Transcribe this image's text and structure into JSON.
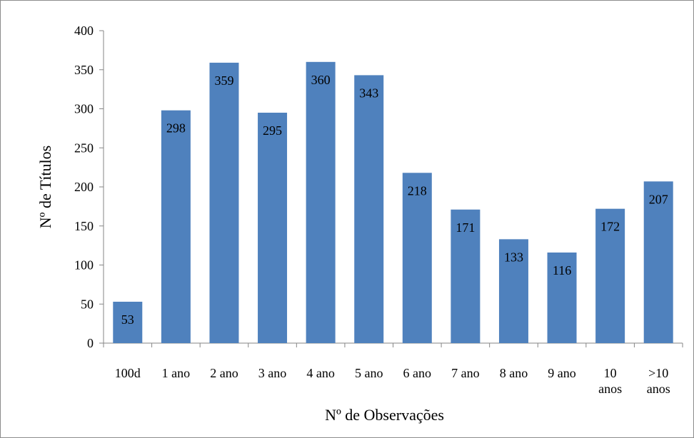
{
  "chart_data": {
    "type": "bar",
    "title": "",
    "xlabel": "Nº de Observações",
    "ylabel": "Nº de Títulos",
    "categories": [
      [
        "100d"
      ],
      [
        "1 ano"
      ],
      [
        "2 ano"
      ],
      [
        "3 ano"
      ],
      [
        "4 ano"
      ],
      [
        "5 ano"
      ],
      [
        "6 ano"
      ],
      [
        "7 ano"
      ],
      [
        "8 ano"
      ],
      [
        "9 ano"
      ],
      [
        "10",
        "anos"
      ],
      [
        ">10",
        "anos"
      ]
    ],
    "values": [
      53,
      298,
      359,
      295,
      360,
      343,
      218,
      171,
      133,
      116,
      172,
      207
    ],
    "data_labels": [
      "53",
      "298",
      "359",
      "295",
      "360",
      "343",
      "218",
      "171",
      "133",
      "116",
      "172",
      "207"
    ],
    "ylim": [
      0,
      400
    ],
    "yticks": [
      0,
      50,
      100,
      150,
      200,
      250,
      300,
      350,
      400
    ],
    "grid": false,
    "legend": "none",
    "bar_color": "#4F81BD"
  }
}
